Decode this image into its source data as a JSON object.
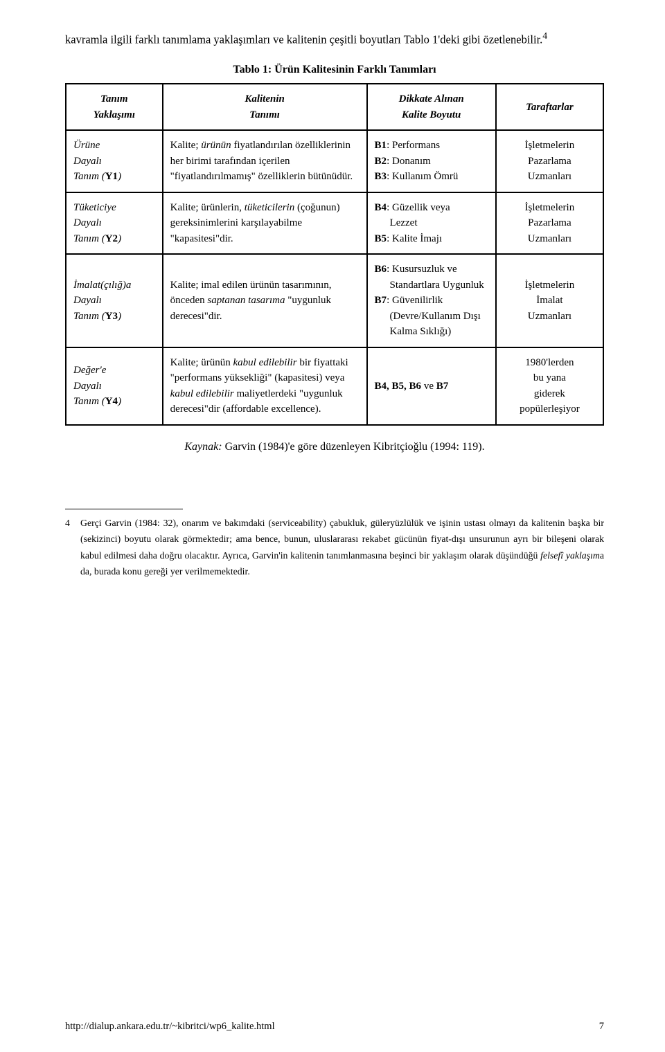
{
  "intro": "kavramla ilgili farklı tanımlama yaklaşımları ve kalitenin çeşitli boyutları Tablo 1'deki gibi özetlenebilir.",
  "intro_footref": "4",
  "table": {
    "caption": "Tablo 1: Ürün Kalitesinin Farklı Tanımları",
    "headers": {
      "c0a": "Tanım",
      "c0b": "Yaklaşımı",
      "c1a": "Kalitenin",
      "c1b": "Tanımı",
      "c2a": "Dikkate Alınan",
      "c2b": "Kalite Boyutu",
      "c3": "Taraftarlar"
    },
    "rows": [
      {
        "label_line1": "Ürüne",
        "label_line2": "Dayalı",
        "label_line3_pre": "Tanım (",
        "label_line3_code": "Y1",
        "label_line3_post": ")",
        "def_pre": "Kalite; ",
        "def_em1": "ürünün",
        "def_mid": " fiyatlandırılan özelliklerinin her birimi tarafından içerilen \"fiyatlandırılmamış\" özelliklerin bütünüdür.",
        "dims": [
          {
            "code": "B1",
            "text": ": Performans"
          },
          {
            "code": "B2",
            "text": ": Donanım"
          },
          {
            "code": "B3",
            "text": ": Kullanım Ömrü"
          }
        ],
        "taraftar": [
          "İşletmelerin",
          "Pazarlama",
          "Uzmanları"
        ]
      },
      {
        "label_line1": "Tüketiciye",
        "label_line2": "Dayalı",
        "label_line3_pre": "Tanım (",
        "label_line3_code": "Y2",
        "label_line3_post": ")",
        "def_pre": "Kalite; ürünlerin, ",
        "def_em1": "tüketicilerin",
        "def_mid": " (çoğunun) gereksinimlerini karşılayabilme \"kapasitesi\"dir.",
        "dims": [
          {
            "code": "B4",
            "text": ": Güzellik veya",
            "extra": "Lezzet"
          },
          {
            "code": "B5",
            "text": ": Kalite İmajı"
          }
        ],
        "taraftar": [
          "İşletmelerin",
          "Pazarlama",
          "Uzmanları"
        ]
      },
      {
        "label_line1": "İmalat(çılığ)a",
        "label_line2": "Dayalı",
        "label_line3_pre": "Tanım (",
        "label_line3_code": "Y3",
        "label_line3_post": ")",
        "def_pre": "Kalite; imal edilen ürünün tasarımının, önceden ",
        "def_em1": "saptanan tasarıma",
        "def_mid": " \"uygunluk derecesi\"dir.",
        "dims": [
          {
            "code": "B6",
            "text": ": Kusursuzluk ve",
            "extra": "Standartlara Uygunluk"
          },
          {
            "code": "B7",
            "text": ": Güvenilirlik",
            "extra": "(Devre/Kullanım Dışı Kalma Sıklığı)"
          }
        ],
        "taraftar": [
          "İşletmelerin",
          "İmalat",
          "Uzmanları"
        ]
      },
      {
        "label_line1": "Değer'e",
        "label_line2": "Dayalı",
        "label_line3_pre": "Tanım (",
        "label_line3_code": "Y4",
        "label_line3_post": ")",
        "def_pre": "Kalite; ürünün ",
        "def_em1": "kabul edilebilir",
        "def_mid1": " bir fiyattaki \"performans yüksekliği\" (kapasitesi) veya ",
        "def_em2": "kabul edilebilir",
        "def_mid2": " maliyetlerdeki \"uygunluk derecesi\"dir (affordable excellence).",
        "dims_text_bold": "B4, B5, B6",
        "dims_text_mid": " ve ",
        "dims_text_bold2": "B7",
        "taraftar": [
          "1980'lerden",
          "bu yana",
          "giderek",
          "popülerleşiyor"
        ]
      }
    ]
  },
  "kaynak_label": "Kaynak:",
  "kaynak_text": " Garvin (1984)'e göre düzenleyen Kibritçioğlu (1994: 119).",
  "footnote": {
    "num": "4",
    "t1": "Gerçi Garvin (1984: 32), onarım ve bakımdaki (serviceability) çabukluk, güleryüzlülük ve işinin ustası olmayı da kalitenin başka bir (sekizinci) boyutu olarak görmektedir; ama bence, bunun, uluslararası rekabet gücünün fiyat-dışı unsurunun ayrı bir bileşeni olarak kabul edilmesi daha doğru olacaktır. Ayrıca, Garvin'in kalitenin tanımlanmasına beşinci bir yaklaşım olarak düşündüğü ",
    "em": "felsefî yaklaşım",
    "t2": "a da, burada konu gereği yer verilmemektedir."
  },
  "footer_url": "http://dialup.ankara.edu.tr/~kibritci/wp6_kalite.html",
  "footer_page": "7"
}
